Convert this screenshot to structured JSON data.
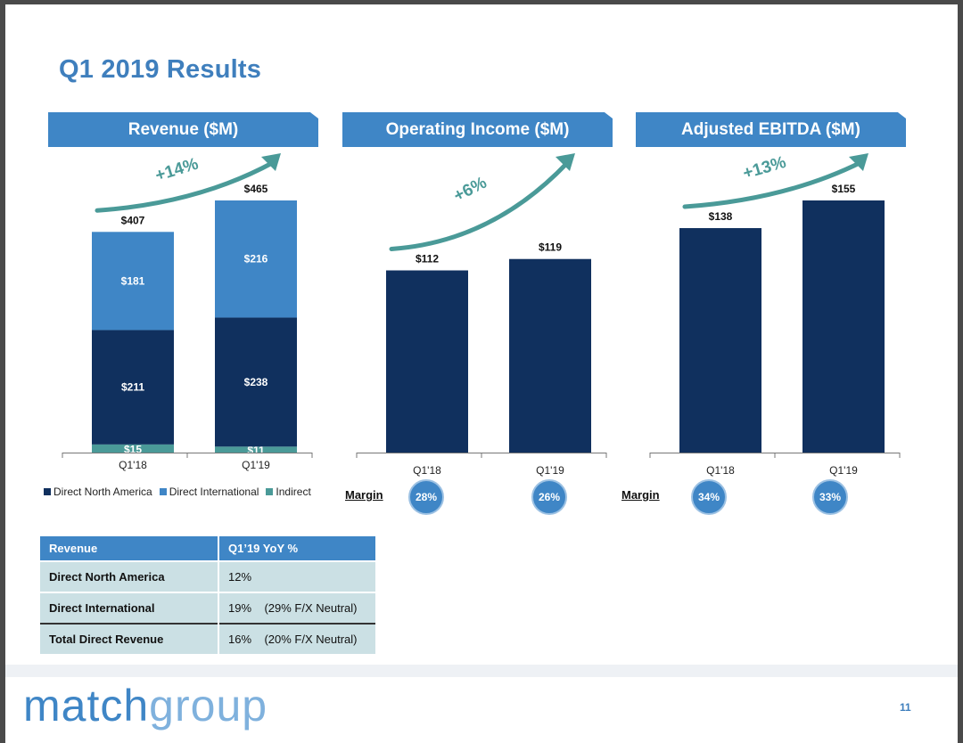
{
  "slide_title": "Q1 2019 Results",
  "colors": {
    "dark_navy": "#10305e",
    "light_blue": "#3f86c6",
    "teal": "#4a9a98",
    "header_blue": "#3f86c6"
  },
  "chart_data": [
    {
      "type": "bar",
      "title": "Revenue ($M)",
      "stacked": true,
      "categories": [
        "Q1'18",
        "Q1'19"
      ],
      "totals_labels": [
        "$407",
        "$465"
      ],
      "growth_label": "+14%",
      "ylim": [
        0,
        465
      ],
      "series": [
        {
          "name": "Indirect",
          "values": [
            15,
            11
          ],
          "labels": [
            "$15",
            "$11"
          ],
          "color": "#4a9a98"
        },
        {
          "name": "Direct North America",
          "values": [
            211,
            238
          ],
          "labels": [
            "$211",
            "$238"
          ],
          "color": "#10305e"
        },
        {
          "name": "Direct International",
          "values": [
            181,
            216
          ],
          "labels": [
            "$181",
            "$216"
          ],
          "color": "#3f86c6"
        }
      ],
      "legend": [
        "Direct North America",
        "Direct International",
        "Indirect"
      ]
    },
    {
      "type": "bar",
      "title": "Operating Income ($M)",
      "categories": [
        "Q1'18",
        "Q1'19"
      ],
      "values": [
        112,
        119
      ],
      "labels": [
        "$112",
        "$119"
      ],
      "growth_label": "+6%",
      "ylim": [
        0,
        155
      ],
      "margin_label": "Margin",
      "margins": [
        "28%",
        "26%"
      ]
    },
    {
      "type": "bar",
      "title": "Adjusted EBITDA ($M)",
      "categories": [
        "Q1'18",
        "Q1'19"
      ],
      "values": [
        138,
        155
      ],
      "labels": [
        "$138",
        "$155"
      ],
      "growth_label": "+13%",
      "ylim": [
        0,
        155
      ],
      "margin_label": "Margin",
      "margins": [
        "34%",
        "33%"
      ]
    }
  ],
  "table": {
    "headers": [
      "Revenue",
      "Q1’19 YoY %"
    ],
    "rows": [
      {
        "label": "Direct North America",
        "value": "12%"
      },
      {
        "label": "Direct International",
        "value": "19%    (29% F/X Neutral)"
      },
      {
        "label": "Total Direct Revenue",
        "value": "16%    (20% F/X Neutral)"
      }
    ]
  },
  "footer": {
    "logo_part1": "match",
    "logo_part2": "group",
    "page_number": "11"
  }
}
